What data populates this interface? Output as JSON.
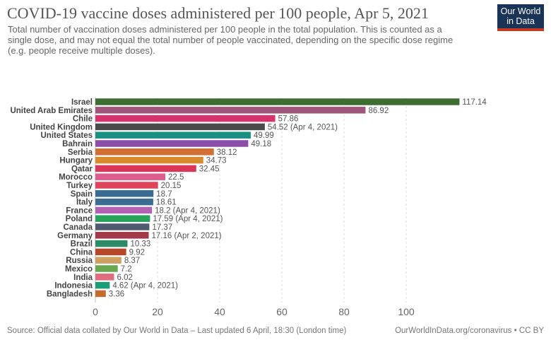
{
  "header": {
    "title": "COVID-19 vaccine doses administered per 100 people, Apr 5, 2021",
    "subtitle": "Total number of vaccination doses administered per 100 people in the total population. This is counted as a single dose, and may not equal the total number of people vaccinated, depending on the specific dose regime (e.g. people receive multiple doses).",
    "logo_line1": "Our World",
    "logo_line2": "in Data",
    "logo_color": "#1a3457",
    "logo_accent": "#c23b22"
  },
  "footer": {
    "source": "Source: Official data collated by Our World in Data – Last updated 6 April, 18:30 (London time)",
    "credit": "OurWorldInData.org/coronavirus • CC BY"
  },
  "chart_data": {
    "type": "bar",
    "orientation": "horizontal",
    "title": "COVID-19 vaccine doses administered per 100 people, Apr 5, 2021",
    "xlim": [
      0,
      120
    ],
    "ticks": [
      0,
      20,
      40,
      60,
      80,
      100
    ],
    "grid": true,
    "categories": [
      "Israel",
      "United Arab Emirates",
      "Chile",
      "United Kingdom",
      "United States",
      "Bahrain",
      "Serbia",
      "Hungary",
      "Qatar",
      "Morocco",
      "Turkey",
      "Spain",
      "Italy",
      "France",
      "Poland",
      "Canada",
      "Germany",
      "Brazil",
      "China",
      "Russia",
      "Mexico",
      "India",
      "Indonesia",
      "Bangladesh"
    ],
    "values": [
      117.14,
      86.92,
      57.86,
      54.52,
      49.99,
      49.18,
      38.12,
      34.73,
      32.45,
      22.5,
      20.15,
      18.7,
      18.61,
      18.2,
      17.59,
      17.37,
      17.16,
      10.33,
      9.92,
      8.37,
      7.2,
      6.02,
      4.62,
      3.36
    ],
    "value_labels": [
      "117.14",
      "86.92",
      "57.86",
      "54.52 (Apr 4, 2021)",
      "49.99",
      "49.18",
      "38.12",
      "34.73",
      "32.45",
      "22.5",
      "20.15",
      "18.7",
      "18.61",
      "18.2 (Apr 4, 2021)",
      "17.59 (Apr 4, 2021)",
      "17.37",
      "17.16 (Apr 2, 2021)",
      "10.33",
      "9.92",
      "8.37",
      "7.2",
      "6.02",
      "4.62 (Apr 4, 2021)",
      "3.36"
    ],
    "colors": [
      "#3c6e32",
      "#a2557b",
      "#d6336c",
      "#4a4a4a",
      "#1b8f80",
      "#8b4fa8",
      "#d06e34",
      "#d88a2d",
      "#d9365a",
      "#e05c8c",
      "#e0445a",
      "#3a6b91",
      "#3a6b91",
      "#b361b5",
      "#27a35a",
      "#505a6e",
      "#a33848",
      "#2d8a66",
      "#b8472a",
      "#d0a063",
      "#6aa84f",
      "#e06d7f",
      "#1b9e77",
      "#c36a2d"
    ]
  }
}
